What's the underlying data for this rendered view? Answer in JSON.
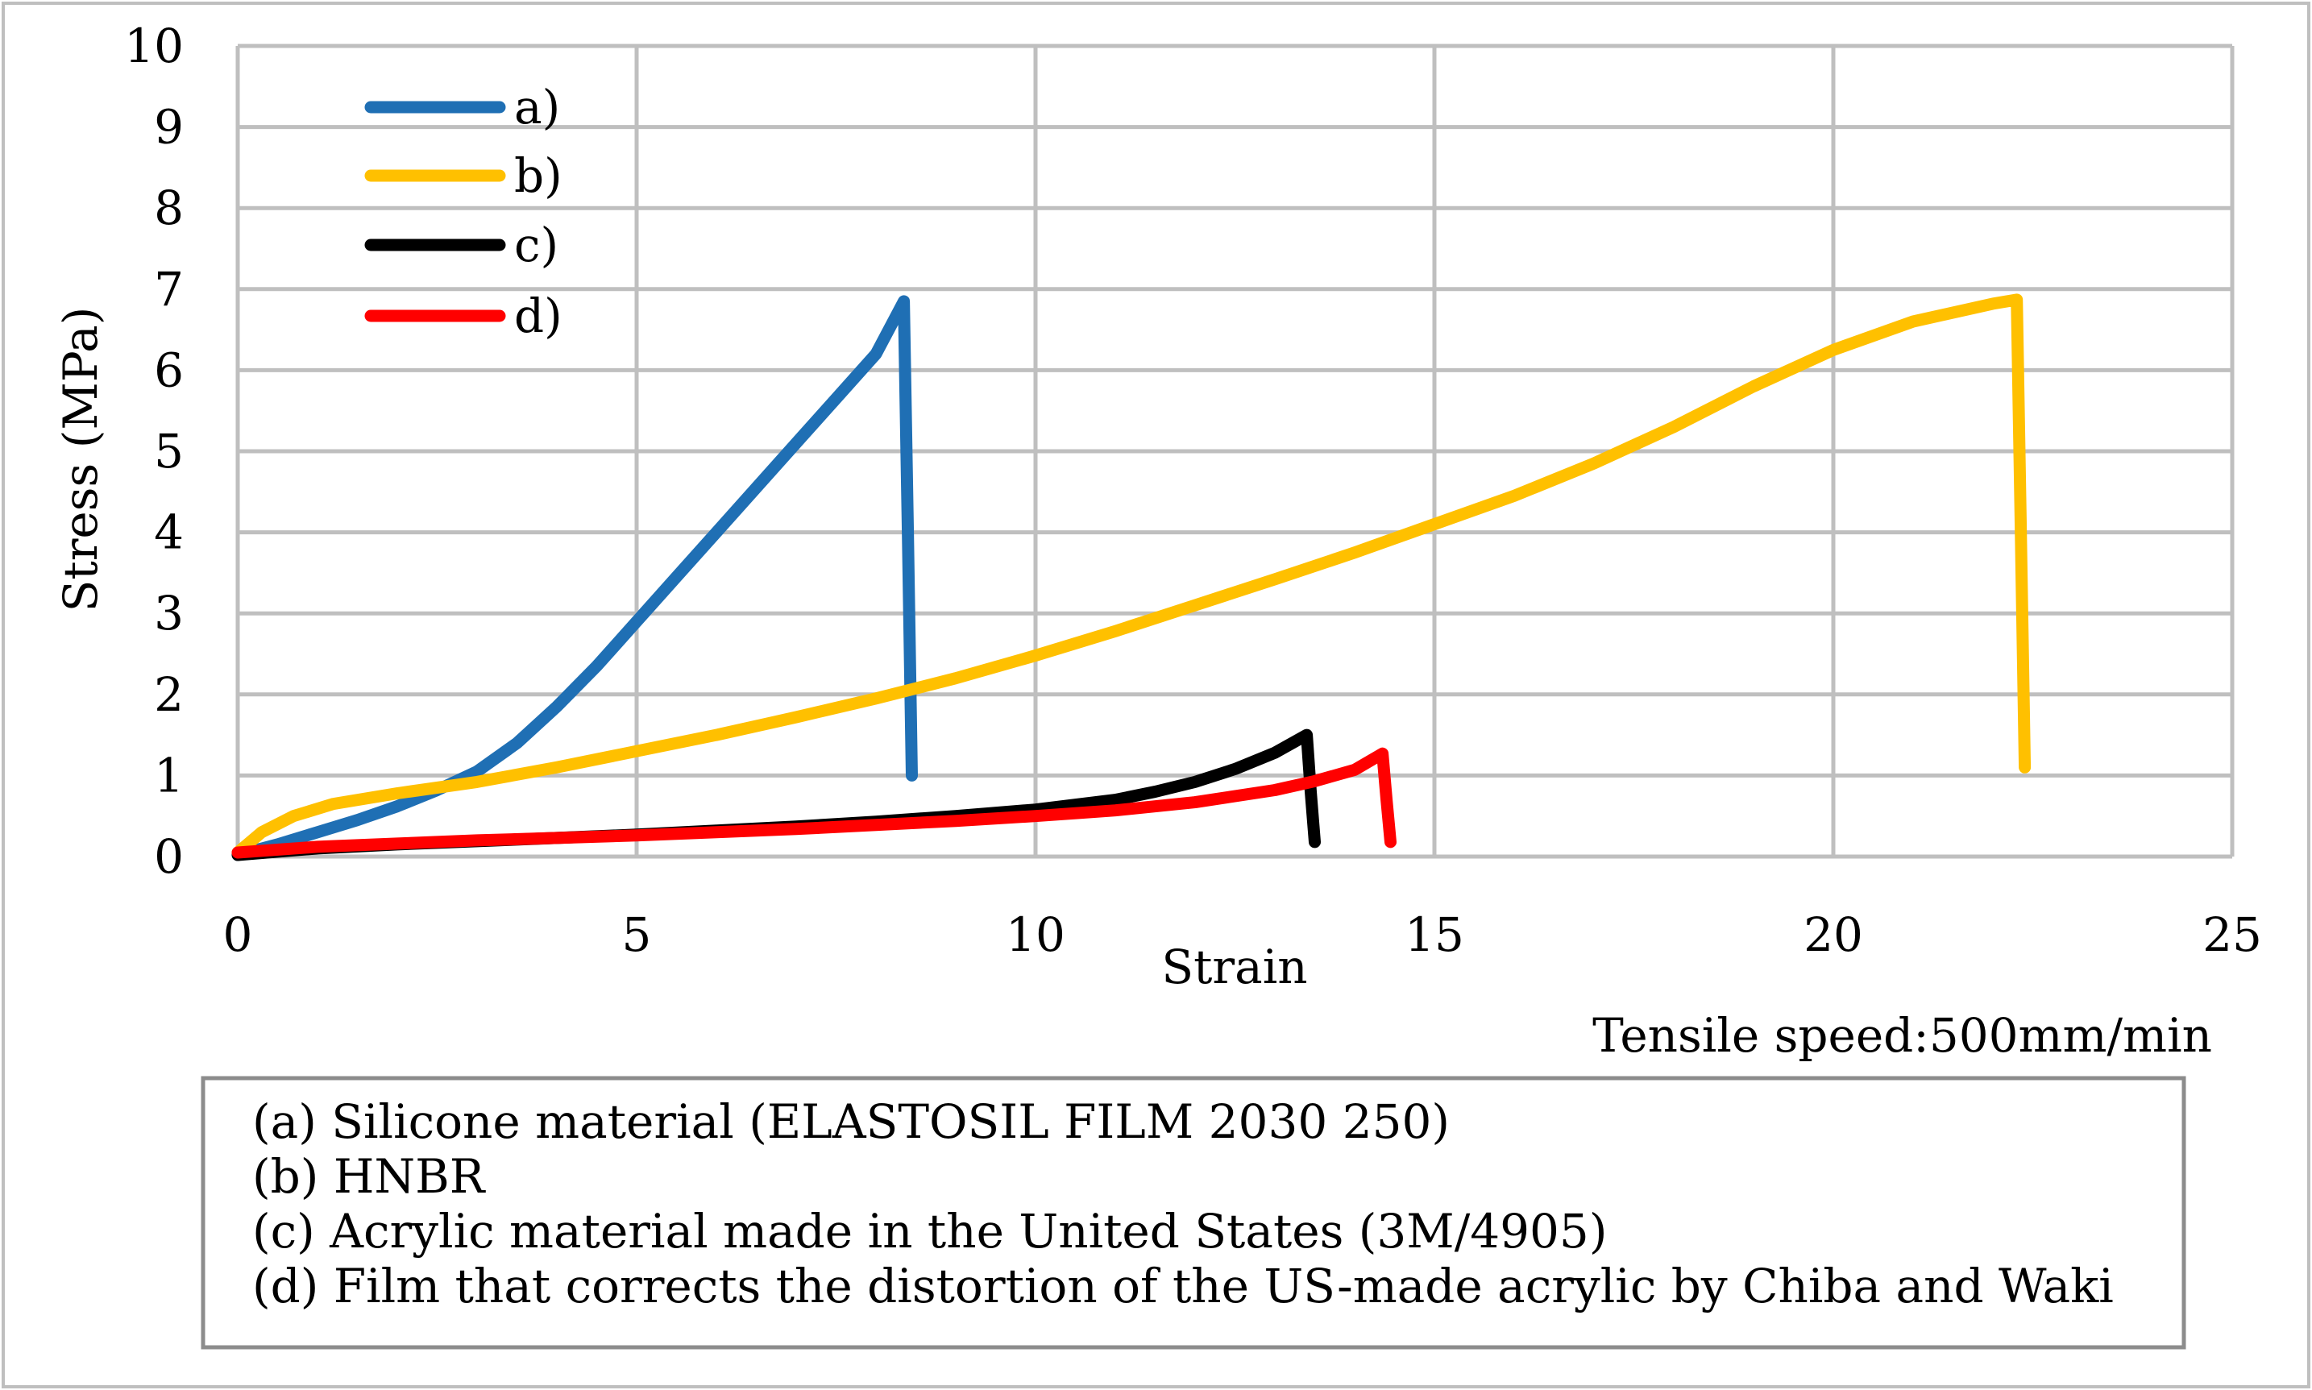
{
  "chart_data": {
    "type": "line",
    "title": "",
    "xlabel": "Strain",
    "ylabel": "Stress (MPa)",
    "xlim": [
      0,
      25
    ],
    "ylim": [
      0,
      10
    ],
    "xticks": [
      0,
      5,
      10,
      15,
      20,
      25
    ],
    "yticks": [
      0,
      1,
      2,
      3,
      4,
      5,
      6,
      7,
      8,
      9,
      10
    ],
    "xtick_labels": [
      "0",
      "5",
      "10",
      "15",
      "20",
      "25"
    ],
    "ytick_labels": [
      "0",
      "1",
      "2",
      "3",
      "4",
      "5",
      "6",
      "7",
      "8",
      "9",
      "10"
    ],
    "grid": true,
    "legend_position": "top-left",
    "annotation": "Tensile speed:500mm/min",
    "caption_lines": [
      "(a) Silicone material (ELASTOSIL FILM 2030 250)",
      "(b) HNBR",
      "(c) Acrylic material made in the United States (3M/4905)",
      "(d) Film that corrects the distortion of the US-made acrylic by Chiba and Waki"
    ],
    "series": [
      {
        "name": "a)",
        "color": "#1f6fb4",
        "points": [
          [
            0,
            0.02
          ],
          [
            0.5,
            0.15
          ],
          [
            1,
            0.3
          ],
          [
            1.5,
            0.45
          ],
          [
            2,
            0.62
          ],
          [
            2.5,
            0.82
          ],
          [
            3,
            1.05
          ],
          [
            3.5,
            1.4
          ],
          [
            4,
            1.85
          ],
          [
            4.5,
            2.35
          ],
          [
            5,
            2.9
          ],
          [
            5.5,
            3.45
          ],
          [
            6,
            4.0
          ],
          [
            6.5,
            4.55
          ],
          [
            7,
            5.1
          ],
          [
            7.5,
            5.65
          ],
          [
            8,
            6.2
          ],
          [
            8.35,
            6.85
          ],
          [
            8.4,
            4.0
          ],
          [
            8.45,
            1.0
          ]
        ]
      },
      {
        "name": "b)",
        "color": "#ffc000",
        "points": [
          [
            0,
            0.05
          ],
          [
            0.3,
            0.3
          ],
          [
            0.7,
            0.5
          ],
          [
            1.2,
            0.65
          ],
          [
            2,
            0.78
          ],
          [
            3,
            0.92
          ],
          [
            4,
            1.1
          ],
          [
            5,
            1.3
          ],
          [
            6,
            1.5
          ],
          [
            7,
            1.72
          ],
          [
            8,
            1.95
          ],
          [
            9,
            2.2
          ],
          [
            10,
            2.48
          ],
          [
            11,
            2.78
          ],
          [
            12,
            3.1
          ],
          [
            13,
            3.42
          ],
          [
            14,
            3.75
          ],
          [
            15,
            4.1
          ],
          [
            16,
            4.45
          ],
          [
            17,
            4.85
          ],
          [
            18,
            5.3
          ],
          [
            19,
            5.8
          ],
          [
            20,
            6.25
          ],
          [
            21,
            6.6
          ],
          [
            22,
            6.82
          ],
          [
            22.3,
            6.87
          ],
          [
            22.35,
            4.0
          ],
          [
            22.4,
            1.1
          ]
        ]
      },
      {
        "name": "c)",
        "color": "#000000",
        "points": [
          [
            0,
            0.02
          ],
          [
            1,
            0.1
          ],
          [
            2,
            0.15
          ],
          [
            3,
            0.19
          ],
          [
            4,
            0.23
          ],
          [
            5,
            0.27
          ],
          [
            6,
            0.32
          ],
          [
            7,
            0.37
          ],
          [
            8,
            0.43
          ],
          [
            9,
            0.5
          ],
          [
            10,
            0.58
          ],
          [
            11,
            0.7
          ],
          [
            11.5,
            0.8
          ],
          [
            12,
            0.92
          ],
          [
            12.5,
            1.08
          ],
          [
            13,
            1.28
          ],
          [
            13.4,
            1.5
          ],
          [
            13.45,
            0.8
          ],
          [
            13.5,
            0.18
          ]
        ]
      },
      {
        "name": "d)",
        "color": "#ff0000",
        "points": [
          [
            0,
            0.05
          ],
          [
            1,
            0.12
          ],
          [
            2,
            0.16
          ],
          [
            3,
            0.2
          ],
          [
            4,
            0.23
          ],
          [
            5,
            0.26
          ],
          [
            6,
            0.3
          ],
          [
            7,
            0.34
          ],
          [
            8,
            0.39
          ],
          [
            9,
            0.44
          ],
          [
            10,
            0.5
          ],
          [
            11,
            0.57
          ],
          [
            12,
            0.67
          ],
          [
            13,
            0.82
          ],
          [
            13.5,
            0.93
          ],
          [
            14,
            1.07
          ],
          [
            14.35,
            1.27
          ],
          [
            14.4,
            0.7
          ],
          [
            14.45,
            0.18
          ]
        ]
      }
    ]
  }
}
